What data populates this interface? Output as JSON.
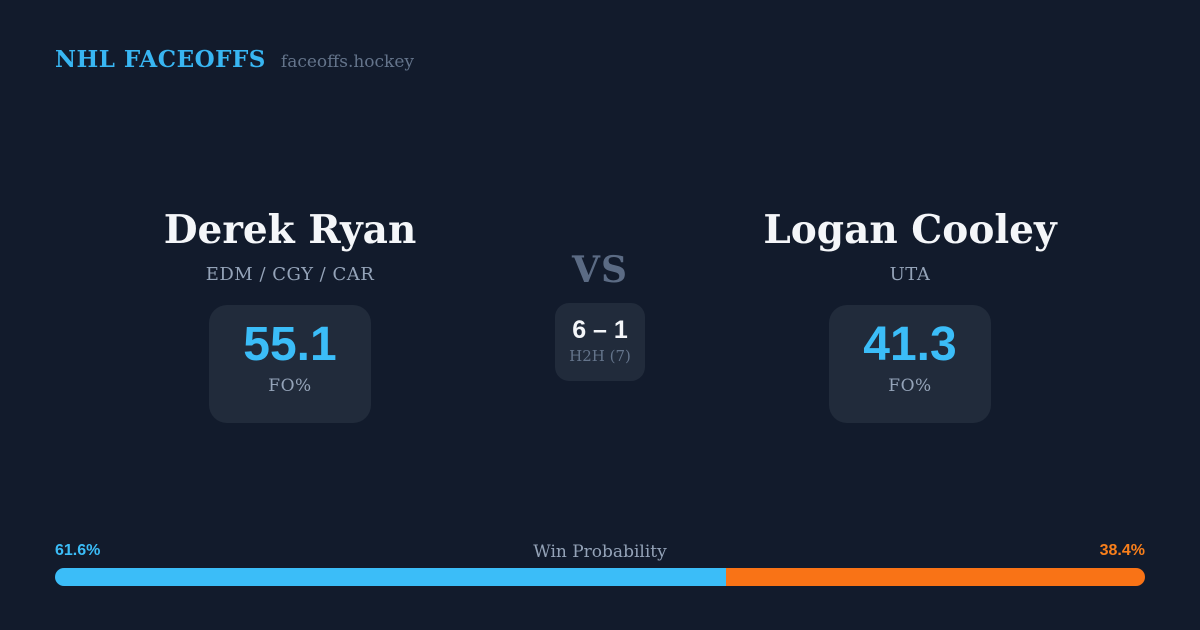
{
  "page": {
    "background": "#121b2c",
    "card_background": "#212b3b",
    "accent_blue": "#3bbdf8",
    "accent_orange": "#f97316"
  },
  "header": {
    "brand": "NHL FACEOFFS",
    "site": "faceoffs.hockey"
  },
  "matchup": {
    "vs_label": "VS",
    "h2h": {
      "score": "6 – 1",
      "label": "H2H (7)"
    },
    "players": [
      {
        "name": "Derek Ryan",
        "teams": "EDM / CGY / CAR",
        "stat_value": "55.1",
        "stat_label": "FO%"
      },
      {
        "name": "Logan Cooley",
        "teams": "UTA",
        "stat_value": "41.3",
        "stat_label": "FO%"
      }
    ]
  },
  "win_probability": {
    "title": "Win Probability",
    "left_label": "61.6%",
    "right_label": "38.4%",
    "left_pct": 61.6,
    "right_pct": 38.4,
    "left_color": "#3bbdf8",
    "right_color": "#f97316"
  },
  "chart_data": {
    "type": "bar",
    "layout": "horizontal-stacked-percentage",
    "title": "Win Probability",
    "categories": [
      "Derek Ryan",
      "Logan Cooley"
    ],
    "values": [
      61.6,
      38.4
    ],
    "value_labels": [
      "61.6%",
      "38.4%"
    ],
    "colors": [
      "#3bbdf8",
      "#f97316"
    ],
    "xlim": [
      0,
      100
    ],
    "grid": false,
    "legend": false,
    "supporting_stats": {
      "faceoff_pct": [
        55.1,
        41.3
      ],
      "head_to_head": "6 – 1",
      "head_to_head_games": 7
    }
  }
}
